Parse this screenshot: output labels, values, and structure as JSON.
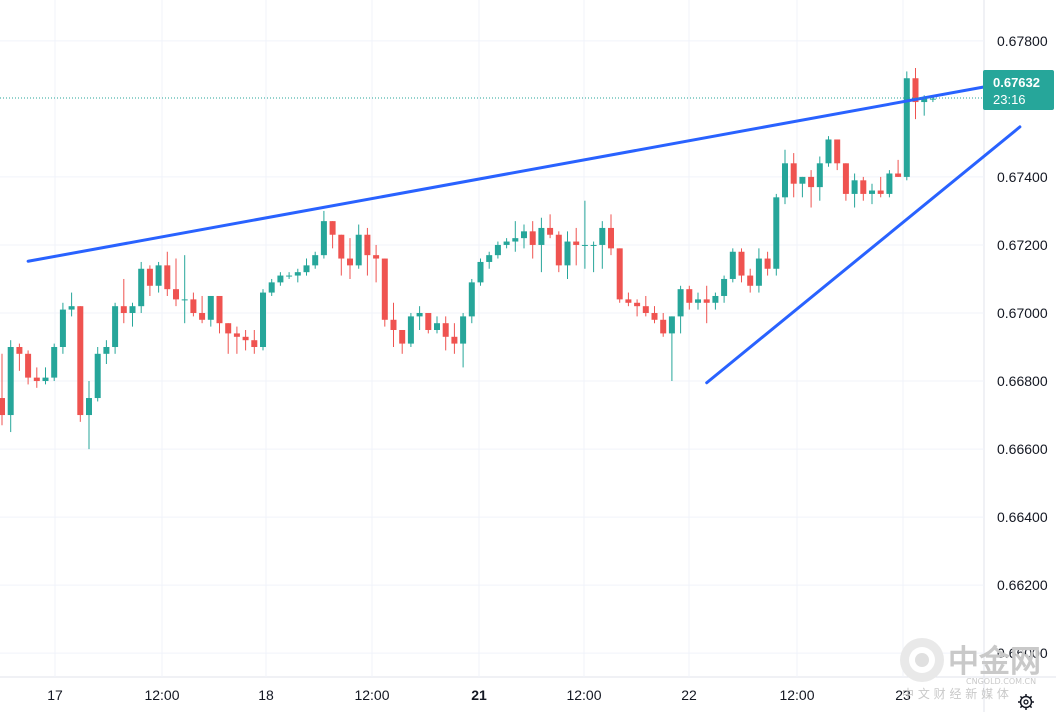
{
  "chart_data": {
    "type": "candlestick",
    "instrument_price_label": "0.67632",
    "countdown_label": "23:16",
    "y_range": [
      0.6593,
      0.6792
    ],
    "y_ticks": [
      "0.67800",
      "0.67400",
      "0.67200",
      "0.67000",
      "0.66800",
      "0.66600",
      "0.66400",
      "0.66200",
      "0.66000"
    ],
    "x_ticks": [
      {
        "label": "17",
        "bold": false
      },
      {
        "label": "12:00",
        "bold": false
      },
      {
        "label": "18",
        "bold": false
      },
      {
        "label": "12:00",
        "bold": false
      },
      {
        "label": "21",
        "bold": true
      },
      {
        "label": "12:00",
        "bold": false
      },
      {
        "label": "22",
        "bold": false
      },
      {
        "label": "12:00",
        "bold": false
      },
      {
        "label": "23",
        "bold": false
      }
    ],
    "colors": {
      "up": "#26a69a",
      "down": "#ef5350",
      "trendline": "#2962ff",
      "grid": "#f0f3fa",
      "price_line": "#26a69a"
    },
    "candles": [
      [
        0.6675,
        0.6688,
        0.6667,
        0.667
      ],
      [
        0.667,
        0.6692,
        0.6665,
        0.669
      ],
      [
        0.669,
        0.6691,
        0.6683,
        0.6688
      ],
      [
        0.6688,
        0.6689,
        0.6679,
        0.6681
      ],
      [
        0.6681,
        0.6684,
        0.6678,
        0.668
      ],
      [
        0.668,
        0.6684,
        0.6679,
        0.6681
      ],
      [
        0.6681,
        0.6691,
        0.668,
        0.669
      ],
      [
        0.669,
        0.6703,
        0.6688,
        0.6701
      ],
      [
        0.6701,
        0.6706,
        0.6699,
        0.6702
      ],
      [
        0.6702,
        0.6702,
        0.6668,
        0.667
      ],
      [
        0.667,
        0.668,
        0.666,
        0.6675
      ],
      [
        0.6675,
        0.669,
        0.6674,
        0.6688
      ],
      [
        0.6688,
        0.6692,
        0.6685,
        0.669
      ],
      [
        0.669,
        0.6703,
        0.6688,
        0.6702
      ],
      [
        0.6702,
        0.671,
        0.6697,
        0.67
      ],
      [
        0.67,
        0.6703,
        0.6696,
        0.6702
      ],
      [
        0.6702,
        0.6715,
        0.67,
        0.6713
      ],
      [
        0.6713,
        0.6714,
        0.6705,
        0.6708
      ],
      [
        0.6708,
        0.6715,
        0.6706,
        0.6714
      ],
      [
        0.6714,
        0.6718,
        0.6705,
        0.6707
      ],
      [
        0.6707,
        0.6716,
        0.6702,
        0.6704
      ],
      [
        0.6704,
        0.6717,
        0.6697,
        0.6704
      ],
      [
        0.6704,
        0.6706,
        0.6699,
        0.67
      ],
      [
        0.67,
        0.6705,
        0.6697,
        0.6698
      ],
      [
        0.6698,
        0.6705,
        0.6696,
        0.6705
      ],
      [
        0.6705,
        0.6705,
        0.6694,
        0.6697
      ],
      [
        0.6697,
        0.6697,
        0.6688,
        0.6694
      ],
      [
        0.6694,
        0.6696,
        0.6688,
        0.6693
      ],
      [
        0.6693,
        0.6695,
        0.6689,
        0.6692
      ],
      [
        0.6692,
        0.6695,
        0.6688,
        0.669
      ],
      [
        0.669,
        0.6707,
        0.6689,
        0.6706
      ],
      [
        0.6706,
        0.671,
        0.6705,
        0.6709
      ],
      [
        0.6709,
        0.6712,
        0.6708,
        0.6711
      ],
      [
        0.6711,
        0.6712,
        0.671,
        0.6711
      ],
      [
        0.6711,
        0.6713,
        0.6709,
        0.6712
      ],
      [
        0.6712,
        0.6716,
        0.6711,
        0.6714
      ],
      [
        0.6714,
        0.6718,
        0.6713,
        0.6717
      ],
      [
        0.6717,
        0.673,
        0.6716,
        0.6727
      ],
      [
        0.6727,
        0.6727,
        0.6719,
        0.6723
      ],
      [
        0.6723,
        0.6723,
        0.6711,
        0.6716
      ],
      [
        0.6716,
        0.6722,
        0.671,
        0.6714
      ],
      [
        0.6714,
        0.6726,
        0.6713,
        0.6723
      ],
      [
        0.6723,
        0.6725,
        0.6711,
        0.6717
      ],
      [
        0.6717,
        0.672,
        0.6709,
        0.6716
      ],
      [
        0.6716,
        0.6716,
        0.6696,
        0.6698
      ],
      [
        0.6698,
        0.6703,
        0.669,
        0.6695
      ],
      [
        0.6695,
        0.6695,
        0.6688,
        0.6691
      ],
      [
        0.6691,
        0.67,
        0.669,
        0.6699
      ],
      [
        0.6699,
        0.6702,
        0.6695,
        0.67
      ],
      [
        0.67,
        0.67,
        0.6694,
        0.6695
      ],
      [
        0.6695,
        0.6699,
        0.6694,
        0.6697
      ],
      [
        0.6697,
        0.6699,
        0.6689,
        0.6693
      ],
      [
        0.6693,
        0.6697,
        0.6688,
        0.6691
      ],
      [
        0.6691,
        0.67,
        0.6684,
        0.6699
      ],
      [
        0.6699,
        0.671,
        0.6697,
        0.6709
      ],
      [
        0.6709,
        0.6716,
        0.6708,
        0.6715
      ],
      [
        0.6715,
        0.6718,
        0.6713,
        0.6717
      ],
      [
        0.6717,
        0.6721,
        0.6716,
        0.672
      ],
      [
        0.672,
        0.6722,
        0.6719,
        0.6721
      ],
      [
        0.6721,
        0.6727,
        0.6718,
        0.6722
      ],
      [
        0.6722,
        0.6726,
        0.6719,
        0.6724
      ],
      [
        0.6724,
        0.6727,
        0.6716,
        0.672
      ],
      [
        0.672,
        0.6728,
        0.6712,
        0.6725
      ],
      [
        0.6725,
        0.6729,
        0.6722,
        0.6723
      ],
      [
        0.6723,
        0.6724,
        0.6712,
        0.6714
      ],
      [
        0.6714,
        0.6724,
        0.671,
        0.6721
      ],
      [
        0.6721,
        0.6725,
        0.6714,
        0.672
      ],
      [
        0.672,
        0.6733,
        0.6713,
        0.672
      ],
      [
        0.672,
        0.6721,
        0.6712,
        0.672
      ],
      [
        0.672,
        0.6727,
        0.6713,
        0.6725
      ],
      [
        0.6725,
        0.6729,
        0.6717,
        0.6719
      ],
      [
        0.6719,
        0.6719,
        0.6703,
        0.6704
      ],
      [
        0.6704,
        0.6706,
        0.6702,
        0.6703
      ],
      [
        0.6703,
        0.6704,
        0.6699,
        0.6702
      ],
      [
        0.6702,
        0.6705,
        0.6699,
        0.67
      ],
      [
        0.67,
        0.6702,
        0.6697,
        0.6698
      ],
      [
        0.6698,
        0.67,
        0.6693,
        0.6694
      ],
      [
        0.6694,
        0.6699,
        0.668,
        0.6699
      ],
      [
        0.6699,
        0.6708,
        0.6694,
        0.6707
      ],
      [
        0.6707,
        0.6708,
        0.6701,
        0.6703
      ],
      [
        0.6703,
        0.6706,
        0.6701,
        0.6704
      ],
      [
        0.6704,
        0.6708,
        0.6697,
        0.6703
      ],
      [
        0.6703,
        0.6706,
        0.6701,
        0.6705
      ],
      [
        0.6705,
        0.6711,
        0.6703,
        0.671
      ],
      [
        0.671,
        0.6719,
        0.6709,
        0.6718
      ],
      [
        0.6718,
        0.6719,
        0.6709,
        0.6711
      ],
      [
        0.6711,
        0.6713,
        0.6706,
        0.6708
      ],
      [
        0.6708,
        0.6719,
        0.6706,
        0.6716
      ],
      [
        0.6716,
        0.6718,
        0.6711,
        0.6713
      ],
      [
        0.6713,
        0.6735,
        0.6711,
        0.6734
      ],
      [
        0.6734,
        0.6748,
        0.6732,
        0.6744
      ],
      [
        0.6744,
        0.6747,
        0.6734,
        0.6738
      ],
      [
        0.6738,
        0.674,
        0.6734,
        0.674
      ],
      [
        0.674,
        0.6742,
        0.6731,
        0.6737
      ],
      [
        0.6737,
        0.6746,
        0.6733,
        0.6744
      ],
      [
        0.6744,
        0.6752,
        0.6743,
        0.6751
      ],
      [
        0.6751,
        0.6751,
        0.6742,
        0.6744
      ],
      [
        0.6744,
        0.6744,
        0.6733,
        0.6735
      ],
      [
        0.6735,
        0.6741,
        0.6731,
        0.6739
      ],
      [
        0.6739,
        0.674,
        0.6733,
        0.6735
      ],
      [
        0.6735,
        0.6738,
        0.6732,
        0.6736
      ],
      [
        0.6736,
        0.674,
        0.6734,
        0.6735
      ],
      [
        0.6735,
        0.6742,
        0.6734,
        0.6741
      ],
      [
        0.6741,
        0.6745,
        0.674,
        0.674
      ],
      [
        0.674,
        0.6771,
        0.6739,
        0.6769
      ],
      [
        0.6769,
        0.6772,
        0.6757,
        0.6762
      ],
      [
        0.6762,
        0.6764,
        0.6758,
        0.6763
      ],
      [
        0.6763,
        0.6764,
        0.6762,
        0.6763
      ]
    ],
    "trendlines": [
      {
        "from": [
          3,
          0.67152
        ],
        "to": [
          113,
          0.67665
        ]
      },
      {
        "from": [
          81,
          0.66795
        ],
        "to": [
          117,
          0.67547
        ]
      }
    ]
  },
  "watermark": {
    "brand": "中金网",
    "domain": "CNGOLD.COM.CN",
    "tagline": "中 文 财 经 新 媒 体"
  }
}
